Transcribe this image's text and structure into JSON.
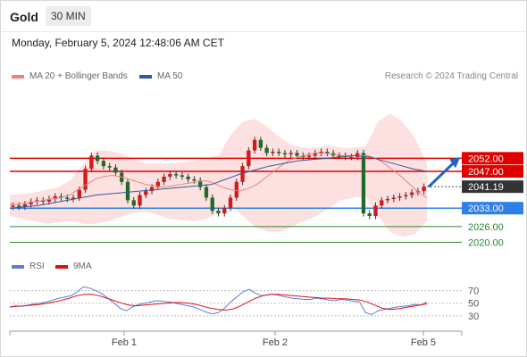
{
  "header": {
    "title": "Gold",
    "timeframe": "30 MIN",
    "datetime": "Monday, February 5, 2024 12:48:06 AM CET"
  },
  "legend": {
    "ma20_label": "MA 20 + Bollinger Bands",
    "ma20_color": "#f08080",
    "ma50_label": "MA 50",
    "ma50_color": "#2f5c9a",
    "credit": "Research © 2024 Trading Central"
  },
  "rsi_legend": {
    "rsi_label": "RSI",
    "rsi_color": "#5b7fd6",
    "ma_label": "9MA",
    "ma_color": "#e01010"
  },
  "chart_data": {
    "type": "candlestick",
    "price_range": [
      2015.4,
      2080.0
    ],
    "x_ticks": [
      "Feb 1",
      "Feb 2",
      "Feb 5"
    ],
    "levels": [
      {
        "label": "2052.00",
        "style": "resistance",
        "color": "#e00000"
      },
      {
        "label": "2047.00",
        "style": "resistance",
        "color": "#e00000"
      },
      {
        "label": "2041.19",
        "style": "current",
        "color": "#333333"
      },
      {
        "label": "2033.00",
        "style": "pivot",
        "color": "#2f7fe8"
      },
      {
        "label": "2026.00",
        "style": "support",
        "color": "#2a8a2a"
      },
      {
        "label": "2020.00",
        "style": "support",
        "color": "#2a8a2a"
      }
    ],
    "closes": [
      2034.0,
      2033.5,
      2034.5,
      2035.5,
      2036.0,
      2035.5,
      2036.5,
      2037.5,
      2037.0,
      2036.5,
      2037.0,
      2040.0,
      2048.0,
      2053.0,
      2051.0,
      2049.0,
      2048.5,
      2046.5,
      2043.0,
      2036.0,
      2034.0,
      2038.0,
      2039.5,
      2041.0,
      2043.0,
      2045.0,
      2046.0,
      2045.5,
      2045.0,
      2044.0,
      2043.5,
      2041.0,
      2037.0,
      2032.0,
      2031.0,
      2033.0,
      2037.0,
      2043.0,
      2049.0,
      2055.0,
      2059.0,
      2056.0,
      2054.0,
      2054.5,
      2054.0,
      2053.5,
      2054.0,
      2053.0,
      2052.5,
      2053.0,
      2054.0,
      2054.5,
      2054.0,
      2053.0,
      2053.0,
      2052.5,
      2052.5,
      2054.0,
      2031.0,
      2030.0,
      2034.0,
      2036.0,
      2036.5,
      2037.0,
      2037.5,
      2038.0,
      2039.0,
      2039.5,
      2041.19
    ],
    "ma20": [
      2034.5,
      2034.5,
      2035.0,
      2035.5,
      2036.0,
      2036.5,
      2037.0,
      2038.0,
      2040.0,
      2042.0,
      2044.0,
      2045.0,
      2045.5,
      2045.0,
      2044.0,
      2043.0,
      2042.0,
      2041.5,
      2041.0,
      2041.5,
      2042.0,
      2042.5,
      2043.0,
      2043.5,
      2042.5,
      2041.0,
      2040.0,
      2039.5,
      2040.5,
      2042.0,
      2044.5,
      2047.0,
      2049.5,
      2051.5,
      2052.5,
      2053.5,
      2054.0,
      2054.0,
      2053.5,
      2053.0,
      2053.0,
      2053.0,
      2053.0,
      2052.0,
      2050.0,
      2047.5,
      2045.0,
      2042.0,
      2039.0,
      2037.0
    ],
    "bb_upper": [
      2038.0,
      2038.5,
      2039.0,
      2040.0,
      2041.0,
      2044.0,
      2050.0,
      2055.0,
      2055.0,
      2054.0,
      2052.0,
      2050.0,
      2050.0,
      2050.0,
      2050.5,
      2051.0,
      2052.0,
      2053.0,
      2061.0,
      2066.0,
      2067.0,
      2064.0,
      2060.0,
      2057.0,
      2056.0,
      2056.0,
      2057.0,
      2056.0,
      2056.0,
      2056.5,
      2066.0,
      2069.0,
      2066.0,
      2060.0,
      2050.0
    ],
    "bb_lower": [
      2030.0,
      2029.0,
      2028.0,
      2027.0,
      2027.5,
      2028.0,
      2027.0,
      2027.0,
      2028.0,
      2029.5,
      2031.0,
      2032.0,
      2030.5,
      2029.0,
      2028.5,
      2028.0,
      2029.0,
      2031.0,
      2034.0,
      2030.0,
      2026.0,
      2024.0,
      2024.0,
      2026.0,
      2028.0,
      2030.0,
      2033.0,
      2036.0,
      2037.0,
      2037.5,
      2030.0,
      2024.0,
      2022.0,
      2023.0,
      2028.0
    ],
    "ma50": [
      2033.0,
      2033.5,
      2034.0,
      2035.0,
      2036.0,
      2037.0,
      2038.0,
      2038.5,
      2039.0,
      2039.5,
      2040.0,
      2040.5,
      2041.0,
      2041.5,
      2042.0,
      2044.0,
      2046.0,
      2047.5,
      2049.0,
      2050.0,
      2051.0,
      2051.5,
      2052.0,
      2052.5,
      2053.0,
      2052.5,
      2051.0,
      2049.5,
      2048.0,
      2047.0
    ],
    "forecast": {
      "from": 2041.19,
      "to": 2052.0
    },
    "rsi": {
      "range": [
        10,
        85
      ],
      "ticks": [
        70,
        50,
        30
      ],
      "rsi_values": [
        44,
        46,
        45,
        47,
        49,
        50,
        52,
        55,
        58,
        60,
        62,
        68,
        76,
        74,
        70,
        65,
        58,
        50,
        42,
        38,
        44,
        48,
        50,
        52,
        54,
        53,
        52,
        50,
        48,
        46,
        44,
        40,
        36,
        33,
        35,
        42,
        52,
        60,
        68,
        72,
        66,
        62,
        63,
        64,
        62,
        60,
        58,
        57,
        56,
        56,
        58,
        57,
        55,
        54,
        56,
        55,
        53,
        52,
        35,
        32,
        38,
        40,
        42,
        44,
        45,
        46,
        48,
        47,
        52
      ],
      "ma_values": [
        44,
        45,
        46,
        47,
        48,
        50,
        52,
        55,
        58,
        62,
        64,
        64,
        62,
        58,
        54,
        50,
        47,
        46,
        47,
        48,
        49,
        50,
        51,
        51,
        50,
        48,
        45,
        42,
        40,
        39,
        41,
        46,
        52,
        58,
        62,
        64,
        64,
        63,
        62,
        61,
        60,
        59,
        58,
        58,
        57,
        57,
        56,
        55,
        52,
        47,
        42,
        40,
        41,
        43,
        45,
        47,
        49
      ]
    }
  }
}
